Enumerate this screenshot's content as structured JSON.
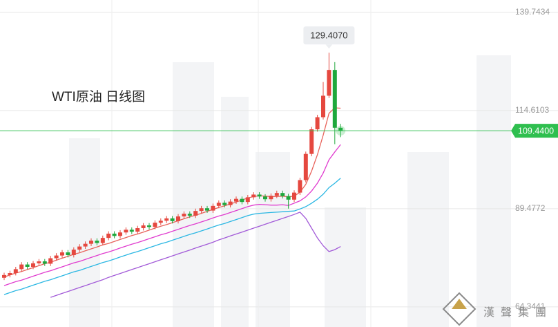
{
  "chart_data": {
    "type": "candlestick",
    "title": "WTI原油  日线图",
    "open": [
      71.8,
      72.5,
      73.0,
      74.0,
      75.2,
      74.6,
      75.5,
      76.0,
      75.4,
      76.8,
      77.5,
      78.3,
      77.6,
      79.0,
      79.8,
      80.5,
      81.3,
      80.7,
      82.0,
      83.1,
      82.5,
      83.4,
      84.1,
      83.6,
      84.5,
      85.2,
      84.8,
      85.9,
      86.4,
      87.0,
      86.3,
      87.5,
      88.2,
      87.7,
      88.9,
      89.6,
      89.0,
      90.2,
      91.0,
      90.4,
      91.3,
      92.0,
      91.2,
      92.4,
      93.1,
      92.6,
      91.9,
      92.8,
      93.5,
      92.7,
      91.8,
      93.6,
      96.8,
      103.5,
      109.8,
      112.9,
      118.4,
      125.0,
      110.2
    ],
    "high": [
      73.1,
      73.6,
      74.6,
      75.8,
      75.8,
      76.1,
      76.6,
      76.6,
      77.4,
      78.1,
      78.9,
      78.9,
      79.6,
      80.4,
      81.1,
      81.9,
      81.9,
      82.6,
      83.7,
      83.7,
      84.0,
      84.7,
      84.7,
      85.1,
      85.8,
      85.8,
      86.5,
      87.0,
      87.6,
      87.6,
      88.1,
      88.8,
      88.8,
      89.5,
      90.2,
      90.2,
      90.8,
      91.6,
      91.6,
      91.9,
      92.6,
      92.6,
      93.0,
      93.7,
      93.7,
      93.2,
      93.4,
      94.1,
      94.1,
      93.3,
      94.2,
      97.4,
      104.1,
      110.4,
      113.5,
      121.9,
      129.407,
      127.0,
      111.2
    ],
    "low": [
      71.2,
      71.9,
      72.4,
      73.4,
      74.0,
      74.0,
      74.9,
      74.8,
      74.8,
      76.2,
      76.9,
      77.0,
      77.0,
      78.4,
      79.2,
      79.9,
      80.1,
      80.1,
      81.4,
      81.9,
      81.9,
      82.8,
      83.0,
      83.0,
      83.9,
      84.2,
      84.2,
      85.3,
      85.8,
      85.7,
      85.7,
      86.9,
      87.1,
      87.1,
      88.3,
      88.4,
      88.4,
      89.6,
      89.8,
      89.8,
      90.7,
      90.6,
      90.6,
      91.8,
      92.0,
      91.3,
      91.3,
      92.2,
      92.1,
      89.5,
      91.2,
      93.0,
      96.2,
      102.9,
      109.2,
      112.3,
      117.8,
      106.0,
      107.8
    ],
    "close": [
      72.5,
      73.0,
      74.0,
      75.2,
      74.6,
      75.5,
      76.0,
      75.4,
      76.8,
      77.5,
      78.3,
      77.6,
      79.0,
      79.8,
      80.5,
      81.3,
      80.7,
      82.0,
      83.1,
      82.5,
      83.4,
      84.1,
      83.6,
      84.5,
      85.2,
      84.8,
      85.9,
      86.4,
      87.0,
      86.3,
      87.5,
      88.2,
      87.7,
      88.9,
      89.6,
      89.0,
      90.2,
      91.0,
      90.4,
      91.3,
      92.0,
      91.2,
      92.4,
      93.1,
      92.6,
      91.9,
      92.8,
      93.5,
      92.7,
      91.8,
      93.6,
      96.8,
      103.5,
      109.8,
      112.9,
      118.4,
      125.0,
      110.2,
      109.44
    ],
    "up_color": "#e5483f",
    "down_color": "#1ea83c",
    "series": [
      {
        "color": "#e8625a",
        "values": [
          72.0,
          72.5,
          73.0,
          73.4,
          73.9,
          74.4,
          74.9,
          75.4,
          75.8,
          76.3,
          76.8,
          77.3,
          77.8,
          78.2,
          78.7,
          79.2,
          79.7,
          80.2,
          80.6,
          81.1,
          81.6,
          82.1,
          82.6,
          83.0,
          83.5,
          84.0,
          84.5,
          85.0,
          85.4,
          85.9,
          86.4,
          86.9,
          87.4,
          87.8,
          88.3,
          88.8,
          89.3,
          89.8,
          90.2,
          90.7,
          91.2,
          91.7,
          92.2,
          92.6,
          92.8,
          92.7,
          92.6,
          92.6,
          92.7,
          92.5,
          92.7,
          93.7,
          95.7,
          99.1,
          103.3,
          108.3,
          113.9,
          115.3,
          115.2
        ]
      },
      {
        "color": "#e03ccf",
        "values": [
          69.8,
          70.3,
          70.8,
          71.2,
          71.7,
          72.2,
          72.7,
          73.2,
          73.6,
          74.1,
          74.6,
          75.1,
          75.6,
          76.0,
          76.5,
          77.0,
          77.5,
          78.0,
          78.4,
          78.9,
          79.4,
          79.9,
          80.4,
          80.8,
          81.3,
          81.8,
          82.3,
          82.8,
          83.2,
          83.7,
          84.2,
          84.7,
          85.2,
          85.6,
          86.1,
          86.6,
          87.1,
          87.6,
          88.0,
          88.5,
          89.0,
          89.5,
          90.0,
          90.4,
          90.6,
          90.5,
          90.4,
          90.4,
          90.5,
          90.3,
          90.9,
          91.5,
          92.5,
          94.0,
          96.0,
          98.6,
          102.0,
          104.0,
          105.9
        ]
      },
      {
        "color": "#2bb7e3",
        "values": [
          67.5,
          68.0,
          68.5,
          68.9,
          69.4,
          69.9,
          70.4,
          70.9,
          71.3,
          71.8,
          72.3,
          72.8,
          73.3,
          73.7,
          74.2,
          74.7,
          75.2,
          75.7,
          76.1,
          76.6,
          77.1,
          77.6,
          78.1,
          78.5,
          79.0,
          79.5,
          80.0,
          80.5,
          80.9,
          81.4,
          81.9,
          82.4,
          82.9,
          83.3,
          83.8,
          84.3,
          84.8,
          85.3,
          85.7,
          86.2,
          86.7,
          87.2,
          87.7,
          88.1,
          88.3,
          88.4,
          88.5,
          88.6,
          88.7,
          88.8,
          88.9,
          89.4,
          90.0,
          90.9,
          91.9,
          93.2,
          94.9,
          96.0,
          97.3
        ]
      },
      {
        "color": "#a25ad8",
        "values": [
          null,
          null,
          null,
          null,
          null,
          null,
          null,
          null,
          66.8,
          67.3,
          67.8,
          68.3,
          68.8,
          69.3,
          69.8,
          70.3,
          70.8,
          71.3,
          71.9,
          72.4,
          72.9,
          73.4,
          73.9,
          74.4,
          74.9,
          75.4,
          75.9,
          76.4,
          76.9,
          77.4,
          77.9,
          78.4,
          78.9,
          79.4,
          79.9,
          80.4,
          80.9,
          81.5,
          82.0,
          82.5,
          83.0,
          83.5,
          84.0,
          84.5,
          85.0,
          85.5,
          86.0,
          86.5,
          87.0,
          87.5,
          88.0,
          88.6,
          87.0,
          84.5,
          82.0,
          80.0,
          78.5,
          79.0,
          79.8
        ]
      }
    ],
    "ylim": [
      59.2,
      142.9
    ],
    "yticks": [
      139.7434,
      114.6103,
      89.4772,
      64.3441
    ],
    "grid": true,
    "peak_label": {
      "value": 129.407,
      "label": "129.4070"
    },
    "current_price": {
      "value": 109.44,
      "label": "109.4400"
    },
    "current_color": "#2fbf4f"
  },
  "watermark": {
    "brand": "漢聲集團"
  }
}
